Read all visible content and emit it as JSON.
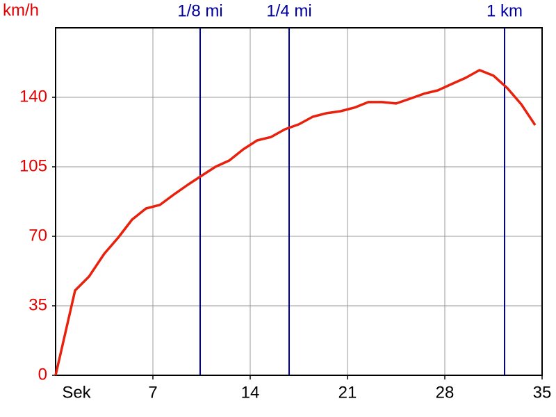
{
  "chart_data": {
    "type": "line",
    "y_label": "km/h",
    "x_label": "Sek",
    "x": [
      0,
      1.4,
      2.4,
      3.5,
      4.5,
      5.5,
      6.5,
      7.5,
      8.5,
      9.5,
      10.5,
      11.5,
      12.5,
      13.5,
      14.5,
      15.5,
      16.5,
      17.5,
      18.5,
      19.5,
      20.5,
      21.5,
      22.5,
      23.5,
      24.5,
      25.5,
      26.5,
      27.5,
      28.5,
      29.5,
      30.5,
      31.5,
      32.5,
      33.5,
      34.5
    ],
    "series": [
      {
        "color": "#e8200c",
        "values": [
          0,
          42.7,
          49.7,
          61.2,
          69.3,
          78.4,
          84,
          85.8,
          91,
          95.9,
          100.5,
          105,
          108.2,
          113.8,
          118.3,
          120,
          123.9,
          126.4,
          130.2,
          132,
          133,
          134.8,
          137.6,
          137.6,
          136.9,
          139.3,
          141.8,
          143.5,
          146.7,
          149.8,
          153.7,
          150.9,
          144.6,
          136.5,
          126
        ]
      }
    ],
    "markers": [
      {
        "label": "1/8 mi",
        "x": 10.4
      },
      {
        "label": "1/4 mi",
        "x": 16.8
      },
      {
        "label": "1 km",
        "x": 32.3
      }
    ],
    "marker_color": "#0000a0",
    "xlim": [
      0,
      35
    ],
    "xticks": [
      7,
      14,
      21,
      28,
      35
    ],
    "ylim": [
      0,
      175
    ],
    "yticks": [
      0,
      35,
      70,
      105,
      140
    ],
    "y_label_color": "#e00000",
    "grid": true
  }
}
